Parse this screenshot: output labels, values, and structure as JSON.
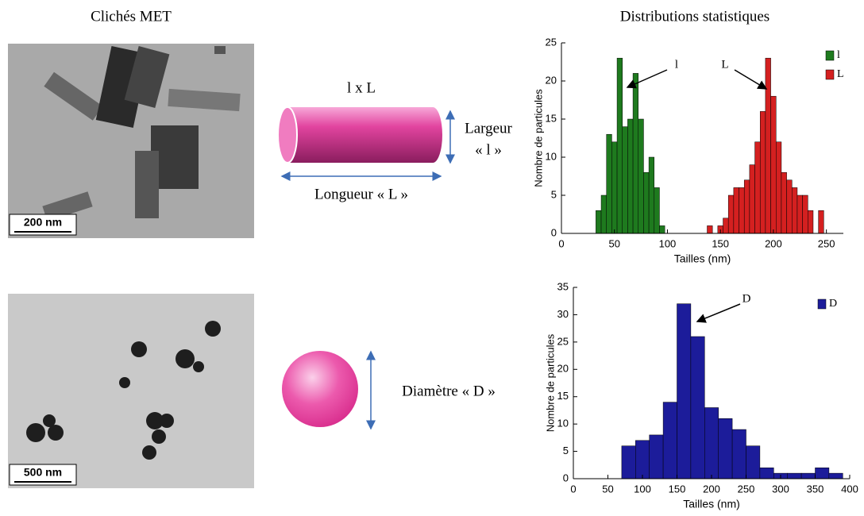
{
  "labels": {
    "left_title": "Clichés MET",
    "right_title": "Distributions statistiques",
    "rod_dims": "l x L",
    "width_label": "Largeur",
    "width_symbol": "« l »",
    "length_label": "Longueur « L »",
    "diameter_label": "Diamètre « D »",
    "scale_bar_1": "200 nm",
    "scale_bar_2": "500 nm"
  },
  "chart_data": [
    {
      "type": "histogram",
      "x_label": "Tailles (nm)",
      "y_label": "Nombre de particules",
      "xlim": [
        0,
        266
      ],
      "xticks": [
        0,
        50,
        100,
        150,
        200,
        250
      ],
      "ylim": [
        0,
        25
      ],
      "yticks": [
        0,
        5,
        10,
        15,
        20,
        25
      ],
      "legend": "top-right",
      "annotations": [
        "l",
        "L"
      ],
      "series": [
        {
          "name": "l",
          "color": "#1e7a1e",
          "bins": [
            32.5,
            37.5,
            42.5,
            47.5,
            52.5,
            57.5,
            62.5,
            67.5,
            72.5,
            77.5,
            82.5,
            87.5,
            92.5,
            97.5
          ],
          "values": [
            3,
            5,
            13,
            12,
            23,
            14,
            15,
            21,
            15,
            8,
            10,
            6,
            1
          ]
        },
        {
          "name": "L",
          "color": "#d42020",
          "bins": [
            137.5,
            142.5,
            147.5,
            152.5,
            157.5,
            162.5,
            167.5,
            172.5,
            177.5,
            182.5,
            187.5,
            192.5,
            197.5,
            202.5,
            207.5,
            212.5,
            217.5,
            222.5,
            227.5,
            232.5,
            237.5,
            242.5,
            247.5
          ],
          "values": [
            1,
            0,
            1,
            2,
            5,
            6,
            6,
            7,
            9,
            12,
            16,
            23,
            18,
            12,
            8,
            7,
            6,
            5,
            5,
            3,
            0,
            3
          ]
        }
      ]
    },
    {
      "type": "histogram",
      "x_label": "Tailles (nm)",
      "y_label": "Nombre de particules",
      "xlim": [
        0,
        400
      ],
      "xticks": [
        0,
        50,
        100,
        150,
        200,
        250,
        300,
        350,
        400
      ],
      "ylim": [
        0,
        35
      ],
      "yticks": [
        0,
        5,
        10,
        15,
        20,
        25,
        30,
        35
      ],
      "legend": "top-right",
      "annotations": [
        "D"
      ],
      "series": [
        {
          "name": "D",
          "color": "#1c1c9a",
          "bins": [
            70,
            90,
            110,
            130,
            150,
            170,
            190,
            210,
            230,
            250,
            270,
            290,
            310,
            330,
            350,
            370,
            390
          ],
          "values": [
            6,
            7,
            8,
            14,
            32,
            26,
            13,
            11,
            9,
            6,
            2,
            1,
            1,
            1,
            2,
            1
          ]
        }
      ]
    }
  ]
}
